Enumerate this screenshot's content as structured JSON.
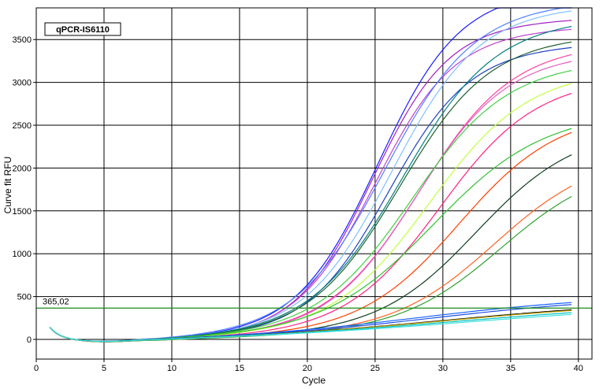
{
  "chart_data": {
    "type": "line",
    "title": "qPCR-IS6110",
    "xlabel": "Cycle",
    "ylabel": "Curve fit RFU",
    "xlim": [
      0,
      41
    ],
    "ylim": [
      -230,
      3870
    ],
    "xticks": [
      0,
      5,
      10,
      15,
      20,
      25,
      30,
      35,
      40
    ],
    "yticks": [
      0,
      500,
      1000,
      1500,
      2000,
      2500,
      3000,
      3500
    ],
    "yticklabels": [
      "0",
      "500",
      "1000",
      "1500",
      "2000",
      "2500",
      "3000",
      "3500"
    ],
    "grid": true,
    "threshold": {
      "value": 365.02,
      "label": "365,02",
      "color": "#1a8a1a"
    },
    "series_start_cycle": 1,
    "series_end_cycle": 39.5,
    "series": [
      {
        "color": "#1a1aff",
        "plateau": 3950,
        "ct": 25.2,
        "slope": 3.0
      },
      {
        "color": "#a020c0",
        "plateau": 3600,
        "ct": 24.8,
        "slope": 2.8
      },
      {
        "color": "#c040d0",
        "plateau": 3500,
        "ct": 25.0,
        "slope": 2.9
      },
      {
        "color": "#5080ff",
        "plateau": 3800,
        "ct": 25.7,
        "slope": 3.3
      },
      {
        "color": "#80c0ff",
        "plateau": 3750,
        "ct": 26.2,
        "slope": 3.2
      },
      {
        "color": "#2040c0",
        "plateau": 3300,
        "ct": 26.0,
        "slope": 3.0
      },
      {
        "color": "#008080",
        "plateau": 3600,
        "ct": 27.0,
        "slope": 3.4
      },
      {
        "color": "#206030",
        "plateau": 3400,
        "ct": 26.8,
        "slope": 3.3
      },
      {
        "color": "#ff40a0",
        "plateau": 3300,
        "ct": 28.3,
        "slope": 3.4
      },
      {
        "color": "#e060c0",
        "plateau": 3200,
        "ct": 28.1,
        "slope": 3.3
      },
      {
        "color": "#40d040",
        "plateau": 3100,
        "ct": 27.7,
        "slope": 3.5
      },
      {
        "color": "#c0ff40",
        "plateau": 3000,
        "ct": 29.0,
        "slope": 3.6
      },
      {
        "color": "#ff2080",
        "plateau": 2900,
        "ct": 29.8,
        "slope": 3.5
      },
      {
        "color": "#30c030",
        "plateau": 2500,
        "ct": 29.3,
        "slope": 4.0
      },
      {
        "color": "#ff4000",
        "plateau": 2500,
        "ct": 31.2,
        "slope": 3.6
      },
      {
        "color": "#104020",
        "plateau": 2300,
        "ct": 32.5,
        "slope": 3.6
      },
      {
        "color": "#ff6020",
        "plateau": 2000,
        "ct": 33.8,
        "slope": 3.7
      },
      {
        "color": "#30a030",
        "plateau": 1900,
        "ct": 34.3,
        "slope": 3.7
      },
      {
        "color": "#1060ff",
        "plateau": 330,
        "ct": 28.0,
        "slope": 6.0
      },
      {
        "color": "#2050e0",
        "plateau": 310,
        "ct": 29.0,
        "slope": 6.0
      },
      {
        "color": "#000000",
        "plateau": 250,
        "ct": 30.0,
        "slope": 6.5
      },
      {
        "color": "#c0a000",
        "plateau": 240,
        "ct": 30.0,
        "slope": 6.5
      },
      {
        "color": "#00c0c0",
        "plateau": 220,
        "ct": 31.0,
        "slope": 7.0
      },
      {
        "color": "#40e0e0",
        "plateau": 200,
        "ct": 32.0,
        "slope": 7.0
      }
    ]
  }
}
